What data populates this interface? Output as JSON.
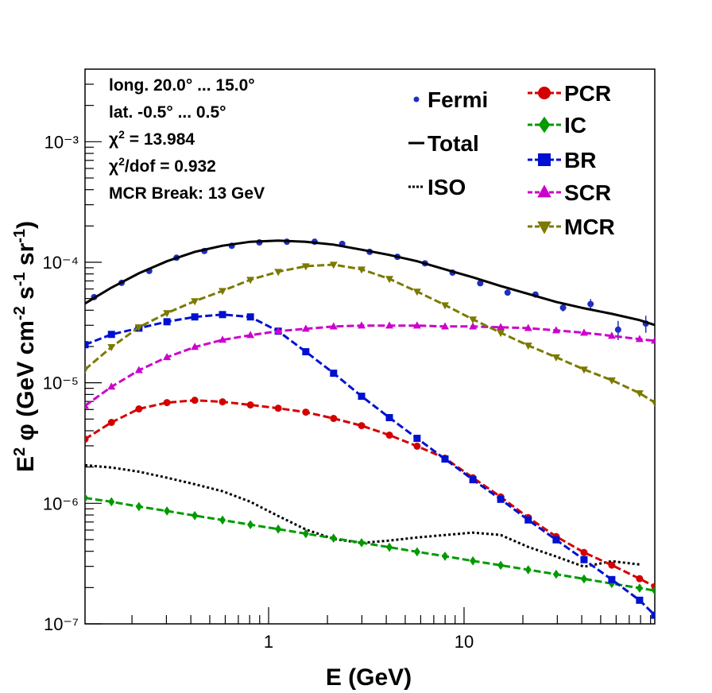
{
  "chart_data": {
    "type": "line",
    "log_x": true,
    "log_y": true,
    "xlabel": "E (GeV)",
    "ylabel_parts": [
      {
        "text": "E"
      },
      {
        "text": "2",
        "sup": true
      },
      {
        "text": " φ (GeV cm"
      },
      {
        "text": "-2",
        "sup": true
      },
      {
        "text": " s"
      },
      {
        "text": "-1",
        "sup": true
      },
      {
        "text": " sr"
      },
      {
        "text": "-1",
        "sup": true
      },
      {
        "text": ")"
      }
    ],
    "xlim": [
      0.115,
      94.6
    ],
    "ylim": [
      1e-07,
      0.004
    ],
    "xticks": [
      1,
      10
    ],
    "xminor_ticks": [
      0.2,
      0.3,
      0.4,
      0.5,
      0.6,
      0.7,
      0.8,
      0.9,
      2,
      3,
      4,
      5,
      6,
      7,
      8,
      9,
      20,
      30,
      40,
      50,
      60,
      70,
      80,
      90
    ],
    "yticks": [
      {
        "value": 1e-07,
        "label": "10⁻⁷"
      },
      {
        "value": 1e-06,
        "label": "10⁻⁶"
      },
      {
        "value": 1e-05,
        "label": "10⁻⁵"
      },
      {
        "value": 0.0001,
        "label": "10⁻⁴"
      },
      {
        "value": 0.001,
        "label": "10⁻³"
      }
    ],
    "yminor_ticks": [
      2e-07,
      3e-07,
      4e-07,
      5e-07,
      6e-07,
      7e-07,
      8e-07,
      9e-07,
      2e-06,
      3e-06,
      4e-06,
      5e-06,
      6e-06,
      7e-06,
      8e-06,
      9e-06,
      2e-05,
      3e-05,
      4e-05,
      5e-05,
      6e-05,
      7e-05,
      8e-05,
      9e-05,
      0.0002,
      0.0003,
      0.0004,
      0.0005,
      0.0006,
      0.0007,
      0.0008,
      0.0009,
      0.002,
      0.003
    ],
    "annotations": [
      [
        "long. 20.0° ... 15.0°"
      ],
      [
        "lat. -0.5° ... 0.5°"
      ],
      [
        "χ",
        "2",
        " = 13.984"
      ],
      [
        "χ",
        "2",
        "/dof = 0.932"
      ],
      [
        "MCR Break: 13 GeV"
      ]
    ],
    "x": [
      0.115,
      0.157,
      0.217,
      0.302,
      0.419,
      0.581,
      0.807,
      1.12,
      1.55,
      2.15,
      2.99,
      4.15,
      5.75,
      7.99,
      11.1,
      15.4,
      21.3,
      29.6,
      41.1,
      57.0,
      79.1,
      94.6
    ],
    "series": [
      {
        "name": "Fermi",
        "color": "#1f2fbf",
        "style": "none",
        "marker": "circle",
        "x": [
          0.128,
          0.177,
          0.245,
          0.338,
          0.469,
          0.648,
          0.897,
          1.24,
          1.72,
          2.38,
          3.29,
          4.56,
          6.31,
          8.73,
          12.1,
          16.7,
          23.2,
          32.1,
          44.4,
          61.4,
          85.1
        ],
        "values": [
          5.14e-05,
          6.75e-05,
          8.47e-05,
          0.000109,
          0.000124,
          0.000137,
          0.000146,
          0.000148,
          0.000148,
          0.000142,
          0.000122,
          0.000111,
          9.8e-05,
          8.2e-05,
          6.7e-05,
          5.6e-05,
          5.4e-05,
          4.2e-05,
          4.5e-05,
          2.76e-05,
          3.1e-05
        ],
        "errors": [
          1.5e-06,
          1.5e-06,
          2e-06,
          2e-06,
          2.5e-06,
          2.5e-06,
          2.5e-06,
          2.5e-06,
          2.5e-06,
          2.5e-06,
          2.5e-06,
          2e-06,
          2e-06,
          2e-06,
          2e-06,
          2.5e-06,
          3e-06,
          3e-06,
          4.5e-06,
          5e-06,
          5e-06
        ]
      },
      {
        "name": "Total",
        "color": "#000000",
        "style": "solid",
        "marker": "none",
        "values": [
          4.55e-05,
          6.16e-05,
          8.09e-05,
          0.000102,
          0.000122,
          0.000137,
          0.000148,
          0.000151,
          0.000148,
          0.00014,
          0.000127,
          0.000115,
          0.000102,
          8.73e-05,
          7.5e-05,
          6.35e-05,
          5.46e-05,
          4.69e-05,
          4.15e-05,
          3.73e-05,
          3.31e-05,
          3.02e-05
        ]
      },
      {
        "name": "ISO",
        "color": "#000000",
        "style": "dotted",
        "marker": "none",
        "values": [
          2.07e-06,
          1.98e-06,
          1.83e-06,
          1.63e-06,
          1.44e-06,
          1.26e-06,
          1.03e-06,
          7.85e-07,
          6.07e-07,
          5.06e-07,
          4.69e-07,
          4.91e-07,
          5.21e-07,
          5.46e-07,
          5.71e-07,
          5.46e-07,
          4.35e-07,
          3.62e-07,
          2.98e-07,
          3.31e-07,
          3.11e-07,
          null
        ]
      },
      {
        "name": "PCR",
        "color": "#d40000",
        "style": "dashed",
        "marker": "circle",
        "values": [
          3.41e-06,
          4.69e-06,
          6.07e-06,
          6.85e-06,
          7.16e-06,
          6.95e-06,
          6.55e-06,
          6.15e-06,
          5.71e-06,
          5.06e-06,
          4.41e-06,
          3.68e-06,
          2.98e-06,
          2.37e-06,
          1.63e-06,
          1.13e-06,
          7.62e-07,
          5.3e-07,
          3.91e-07,
          3.07e-07,
          2.37e-07,
          2.04e-07
        ]
      },
      {
        "name": "IC",
        "color": "#009a00",
        "style": "dashed",
        "marker": "diamond",
        "values": [
          1.11e-06,
          1.03e-06,
          9.4e-07,
          8.63e-07,
          7.91e-07,
          7.26e-07,
          6.65e-07,
          6.11e-07,
          5.6e-07,
          5.14e-07,
          4.71e-07,
          4.32e-07,
          3.96e-07,
          3.64e-07,
          3.33e-07,
          3.06e-07,
          2.81e-07,
          2.58e-07,
          2.36e-07,
          2.16e-07,
          1.98e-07,
          1.89e-07
        ]
      },
      {
        "name": "BR",
        "color": "#0010d0",
        "style": "dashed",
        "marker": "square",
        "values": [
          2.07e-05,
          2.52e-05,
          2.84e-05,
          3.21e-05,
          3.52e-05,
          3.68e-05,
          3.52e-05,
          2.68e-05,
          1.81e-05,
          1.2e-05,
          7.73e-06,
          5.14e-06,
          3.46e-06,
          2.33e-06,
          1.57e-06,
          1.08e-06,
          7.28e-07,
          4.98e-07,
          3.41e-07,
          2.33e-07,
          1.57e-07,
          1.18e-07
        ]
      },
      {
        "name": "SCR",
        "color": "#cc00cc",
        "style": "dashed",
        "marker": "triangle-up",
        "values": [
          6.44e-06,
          9.27e-06,
          1.27e-05,
          1.63e-05,
          1.98e-05,
          2.27e-05,
          2.48e-05,
          2.68e-05,
          2.8e-05,
          2.93e-05,
          2.98e-05,
          2.98e-05,
          2.98e-05,
          2.93e-05,
          2.93e-05,
          2.89e-05,
          2.84e-05,
          2.72e-05,
          2.6e-05,
          2.45e-05,
          2.3e-05,
          2.23e-05
        ]
      },
      {
        "name": "MCR",
        "color": "#7a7a00",
        "style": "dashed",
        "marker": "triangle-down",
        "values": [
          1.29e-05,
          1.98e-05,
          2.89e-05,
          3.79e-05,
          4.76e-05,
          5.79e-05,
          7.16e-05,
          8.34e-05,
          9.27e-05,
          9.55e-05,
          8.73e-05,
          7.28e-05,
          5.71e-05,
          4.41e-05,
          3.36e-05,
          2.6e-05,
          2.04e-05,
          1.63e-05,
          1.29e-05,
          1.05e-05,
          8.2e-06,
          6.85e-06
        ]
      }
    ]
  }
}
